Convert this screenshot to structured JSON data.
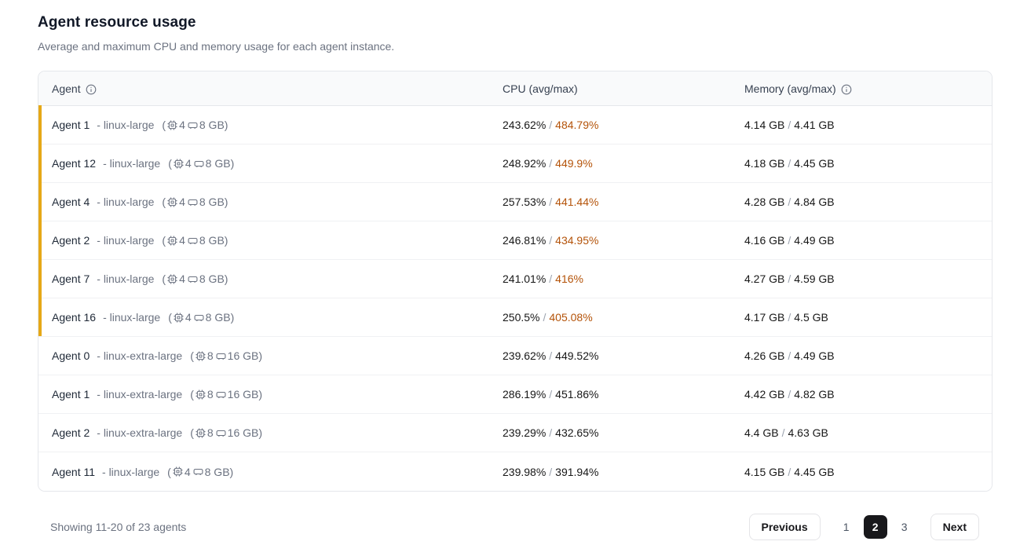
{
  "page": {
    "title": "Agent resource usage",
    "subtitle": "Average and maximum CPU and memory usage for each agent instance."
  },
  "table": {
    "columns": {
      "agent": "Agent",
      "cpu": "CPU (avg/max)",
      "memory": "Memory (avg/max)"
    },
    "header_icons": [
      "info-icon-agent",
      "info-icon-memory"
    ],
    "spec_icons": [
      "cpu-chip-icon",
      "memory-stick-icon"
    ],
    "rows": [
      {
        "name": "Agent 1",
        "type": "- linux-large",
        "cpus": "4",
        "mem": "8 GB)",
        "cpu_avg": "243.62%",
        "cpu_max": "484.79%",
        "cpu_hot": true,
        "mem_avg": "4.14 GB",
        "mem_max": "4.41 GB",
        "flagged": true
      },
      {
        "name": "Agent 12",
        "type": "- linux-large",
        "cpus": "4",
        "mem": "8 GB)",
        "cpu_avg": "248.92%",
        "cpu_max": "449.9%",
        "cpu_hot": true,
        "mem_avg": "4.18 GB",
        "mem_max": "4.45 GB",
        "flagged": true
      },
      {
        "name": "Agent 4",
        "type": "- linux-large",
        "cpus": "4",
        "mem": "8 GB)",
        "cpu_avg": "257.53%",
        "cpu_max": "441.44%",
        "cpu_hot": true,
        "mem_avg": "4.28 GB",
        "mem_max": "4.84 GB",
        "flagged": true
      },
      {
        "name": "Agent 2",
        "type": "- linux-large",
        "cpus": "4",
        "mem": "8 GB)",
        "cpu_avg": "246.81%",
        "cpu_max": "434.95%",
        "cpu_hot": true,
        "mem_avg": "4.16 GB",
        "mem_max": "4.49 GB",
        "flagged": true
      },
      {
        "name": "Agent 7",
        "type": "- linux-large",
        "cpus": "4",
        "mem": "8 GB)",
        "cpu_avg": "241.01%",
        "cpu_max": "416%",
        "cpu_hot": true,
        "mem_avg": "4.27 GB",
        "mem_max": "4.59 GB",
        "flagged": true
      },
      {
        "name": "Agent 16",
        "type": "- linux-large",
        "cpus": "4",
        "mem": "8 GB)",
        "cpu_avg": "250.5%",
        "cpu_max": "405.08%",
        "cpu_hot": true,
        "mem_avg": "4.17 GB",
        "mem_max": "4.5 GB",
        "flagged": true
      },
      {
        "name": "Agent 0",
        "type": "- linux-extra-large",
        "cpus": "8",
        "mem": "16 GB)",
        "cpu_avg": "239.62%",
        "cpu_max": "449.52%",
        "cpu_hot": false,
        "mem_avg": "4.26 GB",
        "mem_max": "4.49 GB",
        "flagged": false
      },
      {
        "name": "Agent 1",
        "type": "- linux-extra-large",
        "cpus": "8",
        "mem": "16 GB)",
        "cpu_avg": "286.19%",
        "cpu_max": "451.86%",
        "cpu_hot": false,
        "mem_avg": "4.42 GB",
        "mem_max": "4.82 GB",
        "flagged": false
      },
      {
        "name": "Agent 2",
        "type": "- linux-extra-large",
        "cpus": "8",
        "mem": "16 GB)",
        "cpu_avg": "239.29%",
        "cpu_max": "432.65%",
        "cpu_hot": false,
        "mem_avg": "4.4 GB",
        "mem_max": "4.63 GB",
        "flagged": false
      },
      {
        "name": "Agent 11",
        "type": "- linux-large",
        "cpus": "4",
        "mem": "8 GB)",
        "cpu_avg": "239.98%",
        "cpu_max": "391.94%",
        "cpu_hot": false,
        "mem_avg": "4.15 GB",
        "mem_max": "4.45 GB",
        "flagged": false
      }
    ],
    "specs_open_paren": "(",
    "slash": "/"
  },
  "footer": {
    "showing": "Showing 11-20 of 23 agents",
    "previous_label": "Previous",
    "next_label": "Next",
    "pages": [
      "1",
      "2",
      "3"
    ],
    "active_page": "2"
  },
  "colors": {
    "accent_bar": "#E6A817",
    "cpu_hot_text": "#B45309",
    "active_page_bg": "#18181B",
    "header_bg": "#F9FAFB",
    "border": "#E5E7EB",
    "muted_text": "#6B7280"
  }
}
